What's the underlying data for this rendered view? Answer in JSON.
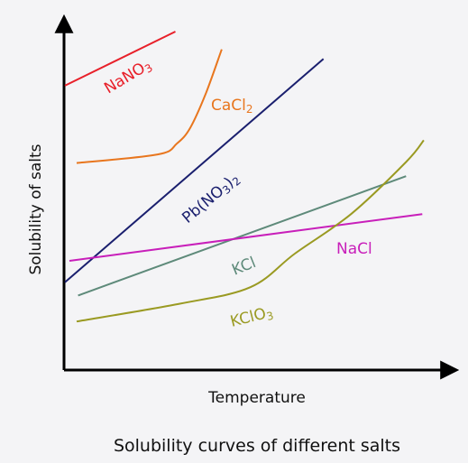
{
  "chart_data": {
    "type": "line",
    "title": "Solubility curves of different salts",
    "xlabel": "Temperature",
    "ylabel": "Solubility of salts",
    "xlim": [
      0,
      100
    ],
    "ylim": [
      0,
      100
    ],
    "grid": false,
    "legend": "none",
    "series": [
      {
        "name": "NaNO3",
        "label_main": "NaNO",
        "label_sub": "3",
        "label_tail": "",
        "color": "#e8202a",
        "x": [
          0,
          29.3
        ],
        "y": [
          83.6,
          100
        ]
      },
      {
        "name": "CaCl2",
        "label_main": "CaCl",
        "label_sub": "2",
        "label_tail": "",
        "color": "#e8761e",
        "x": [
          3.1,
          24.6,
          29.7,
          33.3,
          37.5,
          41.6
        ],
        "y": [
          60.1,
          62.7,
          66.0,
          70.9,
          81.6,
          94.6
        ]
      },
      {
        "name": "Pb(NO3)2",
        "label_main": "Pb(NO",
        "label_sub": "3",
        "label_tail": ")",
        "label_sub2": "2",
        "color": "#1a1f6e",
        "x": [
          0,
          68.6
        ],
        "y": [
          23.9,
          91.7
        ]
      },
      {
        "name": "KCl",
        "label_main": "KCl",
        "label_sub": "",
        "label_tail": "",
        "color": "#5e8a7a",
        "x": [
          3.5,
          90.5
        ],
        "y": [
          19.9,
          56.1
        ]
      },
      {
        "name": "NaCl",
        "label_main": "NaCl",
        "label_sub": "",
        "label_tail": "",
        "color": "#c81fba",
        "x": [
          1.2,
          94.8
        ],
        "y": [
          30.4,
          44.6
        ]
      },
      {
        "name": "KClO3",
        "label_main": "KClO",
        "label_sub": "3",
        "label_tail": "",
        "color": "#9a9a22",
        "x": [
          3.1,
          30.5,
          49.2,
          61.0,
          75.9,
          90.5,
          95.2
        ],
        "y": [
          12.0,
          17.4,
          22.4,
          32.6,
          44.6,
          60.4,
          67.0
        ]
      }
    ]
  }
}
